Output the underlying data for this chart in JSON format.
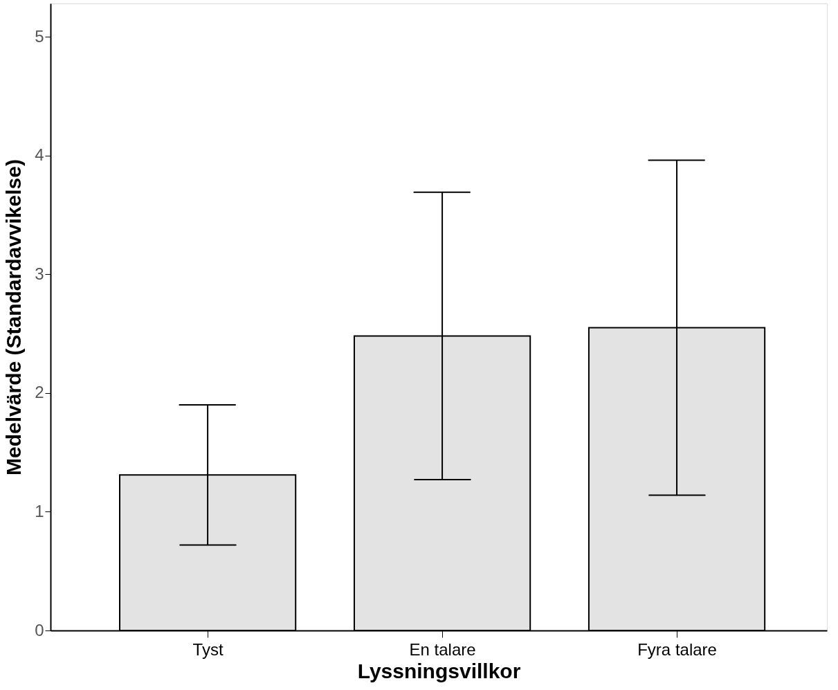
{
  "chart_data": {
    "type": "bar",
    "xlabel": "Lyssningsvillkor",
    "ylabel": "Medelvärde (Standardavvikelse)",
    "categories": [
      "Tyst",
      "En talare",
      "Fyra talare"
    ],
    "values": [
      1.31,
      2.48,
      2.55
    ],
    "errors": [
      0.59,
      1.21,
      1.41
    ],
    "color": "#e3e3e3",
    "ylim": [
      0,
      5.28
    ],
    "yticks": [
      0,
      1,
      2,
      3,
      4,
      5
    ],
    "grid": false
  }
}
